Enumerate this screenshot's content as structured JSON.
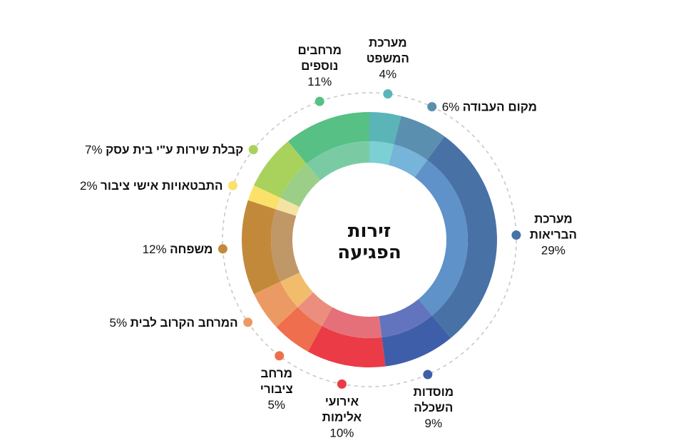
{
  "chart_data": {
    "type": "pie",
    "subtype": "donut",
    "title": "זירות הפגיעה",
    "title_lines": [
      "זירות",
      "הפגיעה"
    ],
    "legend": "labels around ring",
    "slices": [
      {
        "label": "מערכת המשפט",
        "label_lines": [
          "מערכת",
          "המשפט"
        ],
        "value": 4,
        "pct_text": "4%",
        "outer": "#5ab4b8",
        "inner": "#7ccfd3"
      },
      {
        "label": "מקום העבודה",
        "label_lines": [
          "מקום העבודה"
        ],
        "value": 6,
        "pct_text": "6%",
        "outer": "#5b8fb0",
        "inner": "#77b4d9"
      },
      {
        "label": "מערכת הבריאות",
        "label_lines": [
          "מערכת",
          "הבריאות"
        ],
        "value": 29,
        "pct_text": "29%",
        "outer": "#4872a6",
        "inner": "#5f92c8"
      },
      {
        "label": "מוסדות השכלה",
        "label_lines": [
          "מוסדות",
          "השכלה"
        ],
        "value": 9,
        "pct_text": "9%",
        "outer": "#3f5ea9",
        "inner": "#6374be"
      },
      {
        "label": "אירועי אלימות",
        "label_lines": [
          "אירועי",
          "אלימות"
        ],
        "value": 10,
        "pct_text": "10%",
        "outer": "#ea3b47",
        "inner": "#e5707a"
      },
      {
        "label": "מרחב ציבורי",
        "label_lines": [
          "מרחב",
          "ציבורי"
        ],
        "value": 5,
        "pct_text": "5%",
        "outer": "#ef6e4e",
        "inner": "#ec8e7e"
      },
      {
        "label": "המרחב הקרוב לבית",
        "label_lines": [
          "המרחב הקרוב לבית"
        ],
        "value": 5,
        "pct_text": "5%",
        "outer": "#ec9a64",
        "inner": "#f1bd6c"
      },
      {
        "label": "משפחה",
        "label_lines": [
          "משפחה"
        ],
        "value": 12,
        "pct_text": "12%",
        "outer": "#c3893b",
        "inner": "#c09767"
      },
      {
        "label": "התבטאויות אישי ציבור",
        "label_lines": [
          "התבטאויות אישי ציבור"
        ],
        "value": 2,
        "pct_text": "2%",
        "outer": "#fbe06a",
        "inner": "#f4e3a3"
      },
      {
        "label": "קבלת שירות ע\"י בית עסק",
        "label_lines": [
          "קבלת שירות ע\"י בית עסק"
        ],
        "value": 7,
        "pct_text": "7%",
        "outer": "#a8d25c",
        "inner": "#9bcf88"
      },
      {
        "label": "מרחבים נוספים",
        "label_lines": [
          "מרחבים",
          "נוספים"
        ],
        "value": 11,
        "pct_text": "11%",
        "outer": "#56c085",
        "inner": "#7acba4"
      }
    ]
  }
}
